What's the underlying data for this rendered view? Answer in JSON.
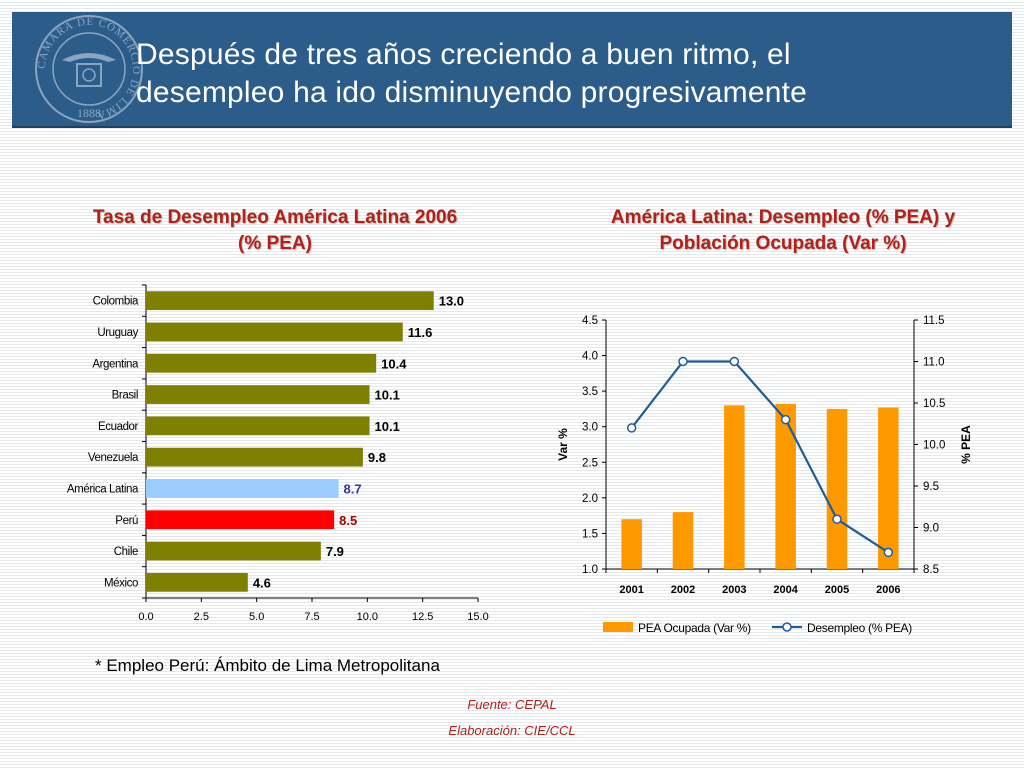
{
  "slide": {
    "title_line1": "Después de tres años creciendo a buen ritmo, el",
    "title_line2": "desempleo ha ido disminuyendo progresivamente",
    "note": "* Empleo Perú: Ámbito de Lima Metropolitana",
    "source": "Fuente: CEPAL",
    "elaboration": "Elaboración: CIE/CCL"
  },
  "logo": {
    "ring_text": "CAMARA DE COMERCIO DE LIMA",
    "year": "1888"
  },
  "colors": {
    "header_bg": "#2c5c8a",
    "title_red": "#b0201c",
    "olive": "#808000",
    "latam_blue": "#99ccff",
    "peru_red": "#ff0000",
    "orange": "#ff9900",
    "line_blue": "#1f5c99"
  },
  "chart_data": [
    {
      "type": "bar",
      "orientation": "horizontal",
      "title": "Tasa de Desempleo América Latina 2006 (% PEA)",
      "title_line1": "Tasa de Desempleo América Latina 2006",
      "title_line2": "(% PEA)",
      "categories": [
        "Colombia",
        "Uruguay",
        "Argentina",
        "Brasil",
        "Ecuador",
        "Venezuela",
        "América Latina",
        "Perú",
        "Chile",
        "México"
      ],
      "values": [
        13.0,
        11.6,
        10.4,
        10.1,
        10.1,
        9.8,
        8.7,
        8.5,
        7.9,
        4.6
      ],
      "value_labels": [
        "13.0",
        "11.6",
        "10.4",
        "10.1",
        "10.1",
        "9.8",
        "8.7",
        "8.5",
        "7.9",
        "4.6"
      ],
      "bar_colors": [
        "#808000",
        "#808000",
        "#808000",
        "#808000",
        "#808000",
        "#808000",
        "#99ccff",
        "#ff0000",
        "#808000",
        "#808000"
      ],
      "label_colors": [
        "#000000",
        "#000000",
        "#000000",
        "#000000",
        "#000000",
        "#000000",
        "#3333aa",
        "#aa0000",
        "#000000",
        "#000000"
      ],
      "xlim": [
        0,
        15
      ],
      "xticks": [
        "0.0",
        "2.5",
        "5.0",
        "7.5",
        "10.0",
        "12.5",
        "15.0"
      ],
      "grid": false
    },
    {
      "type": "bar+line",
      "title": "América Latina:  Desempleo (% PEA) y Población Ocupada (Var %)",
      "title_line1": "América Latina:  Desempleo (% PEA) y",
      "title_line2": "Población Ocupada (Var %)",
      "categories": [
        "2001",
        "2002",
        "2003",
        "2004",
        "2005",
        "2006"
      ],
      "series": [
        {
          "name": "PEA Ocupada (Var %)",
          "type": "bar",
          "axis": "left",
          "values": [
            1.7,
            1.8,
            3.3,
            3.32,
            3.25,
            3.27
          ]
        },
        {
          "name": "Desempleo (% PEA)",
          "type": "line",
          "axis": "right",
          "values": [
            10.2,
            11.0,
            11.0,
            10.3,
            9.1,
            8.7
          ]
        }
      ],
      "ylabel_left": "Var %",
      "ylabel_right": "% PEA",
      "ylim_left": [
        1.0,
        4.5
      ],
      "ylim_right": [
        8.5,
        11.5
      ],
      "yticks_left": [
        "1.0",
        "1.5",
        "2.0",
        "2.5",
        "3.0",
        "3.5",
        "4.0",
        "4.5"
      ],
      "yticks_right": [
        "8.5",
        "9.0",
        "9.5",
        "10.0",
        "10.5",
        "11.0",
        "11.5"
      ],
      "legend": "bottom",
      "grid": false
    }
  ]
}
